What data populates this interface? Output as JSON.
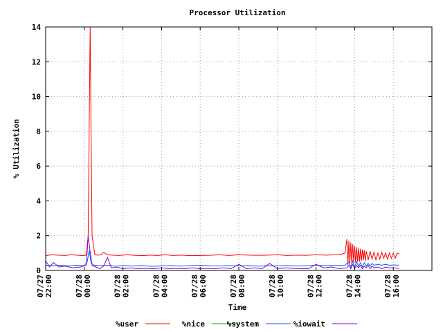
{
  "chart_data": {
    "type": "line",
    "title": "Processor Utilization",
    "xlabel": "Time",
    "ylabel": "% Utilization",
    "ylim": [
      0,
      14
    ],
    "yticks": [
      0,
      2,
      4,
      6,
      8,
      10,
      12,
      14
    ],
    "xlim": [
      -2,
      18
    ],
    "x_unit": "hours relative to 07/28 00:00",
    "xticks": [
      {
        "x": -2,
        "date": "07/27",
        "time": "22:00"
      },
      {
        "x": 0,
        "date": "07/28",
        "time": "00:00"
      },
      {
        "x": 2,
        "date": "07/28",
        "time": "02:00"
      },
      {
        "x": 4,
        "date": "07/28",
        "time": "04:00"
      },
      {
        "x": 6,
        "date": "07/28",
        "time": "06:00"
      },
      {
        "x": 8,
        "date": "07/28",
        "time": "08:00"
      },
      {
        "x": 10,
        "date": "07/28",
        "time": "10:00"
      },
      {
        "x": 12,
        "date": "07/28",
        "time": "12:00"
      },
      {
        "x": 14,
        "date": "07/28",
        "time": "14:00"
      },
      {
        "x": 16,
        "date": "07/28",
        "time": "16:00"
      }
    ],
    "grid": true,
    "legend_position": "bottom",
    "series": [
      {
        "name": "%user",
        "color": "#ff0000",
        "x": [
          -2.0,
          -1.7,
          -1.4,
          -1.0,
          -0.7,
          -0.4,
          -0.1,
          0.1,
          0.2,
          0.3,
          0.4,
          0.55,
          0.7,
          0.85,
          1.0,
          1.2,
          1.4,
          1.8,
          2.2,
          2.6,
          3.0,
          3.4,
          3.8,
          4.2,
          4.6,
          5.0,
          5.5,
          6.0,
          6.5,
          7.0,
          7.5,
          8.0,
          8.5,
          9.0,
          9.5,
          10.0,
          10.5,
          11.0,
          11.5,
          12.0,
          12.5,
          13.0,
          13.3,
          13.5,
          13.6,
          13.65,
          13.7,
          13.75,
          13.8,
          13.85,
          13.9,
          13.95,
          14.0,
          14.05,
          14.1,
          14.15,
          14.2,
          14.25,
          14.3,
          14.35,
          14.4,
          14.45,
          14.5,
          14.55,
          14.6,
          14.7,
          14.8,
          14.9,
          15.0,
          15.1,
          15.2,
          15.3,
          15.4,
          15.5,
          15.6,
          15.7,
          15.8,
          15.9,
          16.0,
          16.1,
          16.2,
          16.3
        ],
        "values": [
          0.85,
          0.9,
          0.88,
          0.86,
          0.9,
          0.88,
          0.85,
          0.88,
          2.0,
          14.0,
          2.0,
          0.9,
          0.88,
          0.9,
          1.05,
          0.9,
          0.88,
          0.86,
          0.9,
          0.87,
          0.85,
          0.88,
          0.86,
          0.9,
          0.86,
          0.88,
          0.85,
          0.86,
          0.87,
          0.9,
          0.86,
          0.9,
          0.88,
          0.87,
          0.88,
          0.9,
          0.86,
          0.88,
          0.87,
          0.9,
          0.88,
          0.9,
          0.92,
          1.0,
          1.8,
          0.3,
          1.7,
          0.4,
          1.6,
          0.4,
          1.5,
          0.5,
          1.4,
          0.45,
          1.35,
          0.5,
          1.3,
          0.5,
          1.25,
          0.55,
          1.2,
          0.6,
          1.15,
          0.55,
          1.1,
          0.6,
          1.1,
          0.65,
          1.05,
          0.6,
          1.0,
          0.65,
          1.05,
          0.7,
          1.0,
          0.65,
          1.0,
          0.7,
          1.0,
          0.7,
          1.0,
          0.95
        ]
      },
      {
        "name": "%nice",
        "color": "#00a000",
        "x": [
          -2.0,
          16.3
        ],
        "values": [
          0.0,
          0.0
        ]
      },
      {
        "name": "%system",
        "color": "#0060e0",
        "x": [
          -2.0,
          -1.6,
          -1.2,
          -0.8,
          -0.4,
          0.0,
          0.15,
          0.25,
          0.35,
          0.5,
          0.8,
          1.2,
          1.6,
          2.0,
          2.5,
          3.0,
          3.5,
          4.0,
          4.5,
          5.0,
          5.5,
          6.0,
          6.5,
          7.0,
          7.5,
          8.0,
          8.5,
          9.0,
          9.5,
          10.0,
          10.5,
          11.0,
          11.5,
          12.0,
          12.5,
          13.0,
          13.5,
          13.7,
          13.8,
          13.9,
          14.0,
          14.1,
          14.2,
          14.3,
          14.4,
          14.5,
          14.6,
          14.7,
          14.8,
          14.9,
          15.0,
          15.2,
          15.4,
          15.6,
          15.8,
          16.0,
          16.3
        ],
        "values": [
          0.3,
          0.28,
          0.3,
          0.26,
          0.3,
          0.28,
          0.5,
          1.15,
          0.45,
          0.3,
          0.28,
          0.3,
          0.25,
          0.28,
          0.26,
          0.28,
          0.24,
          0.26,
          0.28,
          0.25,
          0.28,
          0.3,
          0.27,
          0.26,
          0.28,
          0.26,
          0.28,
          0.25,
          0.27,
          0.26,
          0.28,
          0.26,
          0.27,
          0.3,
          0.28,
          0.29,
          0.3,
          0.5,
          0.2,
          0.55,
          0.2,
          0.5,
          0.25,
          0.45,
          0.2,
          0.45,
          0.25,
          0.4,
          0.25,
          0.4,
          0.3,
          0.35,
          0.3,
          0.35,
          0.3,
          0.32,
          0.3
        ]
      },
      {
        "name": "%iowait",
        "color": "#8000e0",
        "x": [
          -2.0,
          -1.8,
          -1.6,
          -1.3,
          -1.0,
          -0.6,
          -0.2,
          0.1,
          0.2,
          0.3,
          0.4,
          0.6,
          0.8,
          1.0,
          1.2,
          1.4,
          1.7,
          2.0,
          2.4,
          2.8,
          3.2,
          3.6,
          4.0,
          4.4,
          4.8,
          5.2,
          5.6,
          6.0,
          6.4,
          6.8,
          7.2,
          7.6,
          8.0,
          8.4,
          8.8,
          9.2,
          9.6,
          10.0,
          10.4,
          10.8,
          11.2,
          11.6,
          12.0,
          12.4,
          12.8,
          13.2,
          13.6,
          13.7,
          13.8,
          13.9,
          14.0,
          14.1,
          14.2,
          14.3,
          14.4,
          14.5,
          14.6,
          14.7,
          14.8,
          14.9,
          15.0,
          15.2,
          15.4,
          15.6,
          15.8,
          16.0,
          16.3
        ],
        "values": [
          0.55,
          0.2,
          0.45,
          0.2,
          0.25,
          0.15,
          0.2,
          0.3,
          1.95,
          1.1,
          0.3,
          0.2,
          0.1,
          0.25,
          0.75,
          0.15,
          0.2,
          0.1,
          0.15,
          0.1,
          0.12,
          0.1,
          0.15,
          0.1,
          0.12,
          0.1,
          0.15,
          0.1,
          0.12,
          0.1,
          0.15,
          0.1,
          0.35,
          0.1,
          0.15,
          0.1,
          0.4,
          0.1,
          0.15,
          0.12,
          0.1,
          0.1,
          0.35,
          0.15,
          0.2,
          0.1,
          0.15,
          0.3,
          0.1,
          0.35,
          0.1,
          0.3,
          0.15,
          0.3,
          0.1,
          0.25,
          0.15,
          0.3,
          0.1,
          0.25,
          0.15,
          0.2,
          0.1,
          0.2,
          0.15,
          0.15,
          0.12
        ]
      }
    ]
  }
}
